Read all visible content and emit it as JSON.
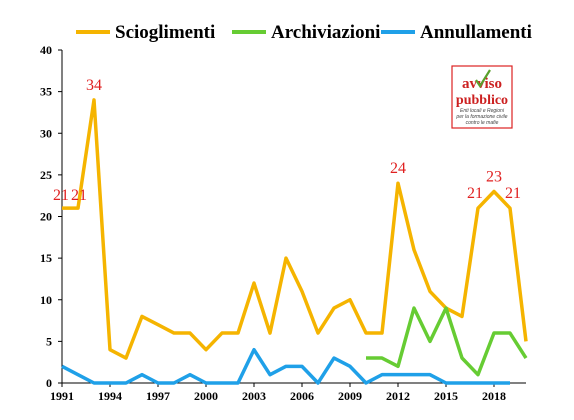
{
  "chart_data": {
    "type": "line",
    "x": [
      1991,
      1992,
      1993,
      1994,
      1995,
      1996,
      1997,
      1998,
      1999,
      2000,
      2001,
      2002,
      2003,
      2004,
      2005,
      2006,
      2007,
      2008,
      2009,
      2010,
      2011,
      2012,
      2013,
      2014,
      2015,
      2016,
      2017,
      2018,
      2019,
      2020
    ],
    "x_ticks": [
      1991,
      1994,
      1997,
      2000,
      2003,
      2006,
      2009,
      2012,
      2015,
      2018
    ],
    "ylim": [
      0,
      40
    ],
    "y_ticks": [
      0,
      5,
      10,
      15,
      20,
      25,
      30,
      35,
      40
    ],
    "grid": false,
    "legend_position": "top",
    "series": [
      {
        "name": "Scioglimenti",
        "color": "#f5b400",
        "values": [
          21,
          21,
          34,
          4,
          3,
          8,
          7,
          6,
          6,
          4,
          6,
          6,
          12,
          6,
          15,
          11,
          6,
          9,
          10,
          6,
          6,
          24,
          16,
          11,
          9,
          8,
          21,
          23,
          21,
          5
        ]
      },
      {
        "name": "Archiviazioni",
        "color": "#66cc33",
        "values": [
          null,
          null,
          null,
          null,
          null,
          null,
          null,
          null,
          null,
          null,
          null,
          null,
          null,
          null,
          null,
          null,
          null,
          null,
          null,
          3,
          3,
          2,
          9,
          5,
          9,
          3,
          1,
          6,
          6,
          3
        ]
      },
      {
        "name": "Annullamenti",
        "color": "#1fa0e8",
        "values": [
          2,
          1,
          0,
          0,
          0,
          1,
          0,
          0,
          1,
          0,
          0,
          0,
          4,
          1,
          2,
          2,
          0,
          3,
          2,
          0,
          1,
          1,
          1,
          1,
          0,
          0,
          0,
          0,
          0,
          null
        ]
      }
    ],
    "data_labels": [
      {
        "x": 1991,
        "text": "21"
      },
      {
        "x": 1992,
        "text": "21"
      },
      {
        "x": 1993,
        "text": "34"
      },
      {
        "x": 2012,
        "text": "24"
      },
      {
        "x": 2017,
        "text": "21"
      },
      {
        "x": 2018,
        "text": "23"
      },
      {
        "x": 2019,
        "text": "21"
      }
    ]
  },
  "logo": {
    "line1": "avviso",
    "line2": "pubblico",
    "tagline": "Enti locali e Regioni per la formazione civile contro le mafie"
  }
}
